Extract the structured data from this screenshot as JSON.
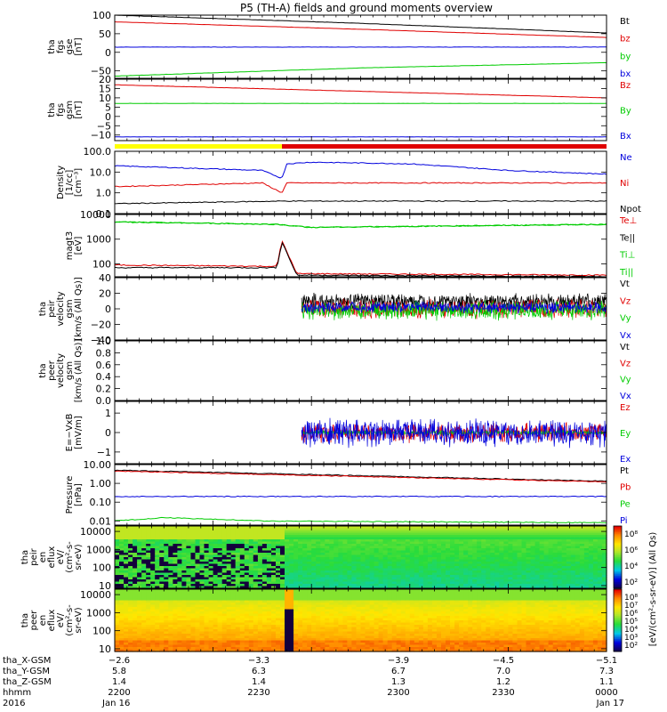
{
  "title": "P5 (TH-A) fields and ground moments overview",
  "colors": {
    "black": "#000000",
    "red": "#e00000",
    "green": "#00cc00",
    "blue": "#0000dd",
    "yellow": "#ffff00"
  },
  "chart_data": [
    {
      "type": "line",
      "panel": "fgs-gse",
      "ylabel": [
        "tha",
        "fgs",
        "gse",
        "[nT]"
      ],
      "ylim": [
        -70,
        100
      ],
      "ticks": [
        "100",
        "50",
        "0",
        "−50"
      ],
      "tick_values": [
        100,
        50,
        0,
        -50
      ],
      "series": [
        {
          "name": "Bt",
          "color": "black",
          "x": [
            0,
            0.5,
            0.85,
            1.0
          ],
          "values": [
            100,
            78,
            60,
            52
          ]
        },
        {
          "name": "bz",
          "color": "red",
          "x": [
            0,
            0.5,
            1.0
          ],
          "values": [
            82,
            62,
            40
          ]
        },
        {
          "name": "by",
          "color": "green",
          "x": [
            0,
            0.5,
            1.0
          ],
          "values": [
            -64,
            -42,
            -28
          ]
        },
        {
          "name": "bx",
          "color": "blue",
          "x": [
            0,
            1.0
          ],
          "values": [
            14,
            14
          ]
        }
      ]
    },
    {
      "type": "line",
      "panel": "fgs-gsm",
      "ylabel": [
        "tha",
        "fgs",
        "gsm",
        "[nT]"
      ],
      "ylim": [
        -13,
        20
      ],
      "ticks": [
        "20",
        "15",
        "10",
        "5",
        "0",
        "−5",
        "−10"
      ],
      "tick_values": [
        20,
        15,
        10,
        5,
        0,
        -5,
        -10
      ],
      "series": [
        {
          "name": "Bz",
          "color": "red",
          "x": [
            0,
            1.0
          ],
          "values": [
            17,
            10
          ]
        },
        {
          "name": "By",
          "color": "green",
          "x": [
            0,
            1.0
          ],
          "values": [
            7,
            7
          ]
        },
        {
          "name": "Bx",
          "color": "blue",
          "x": [
            0,
            1.0
          ],
          "values": [
            -11,
            -11
          ]
        }
      ]
    },
    {
      "type": "line",
      "panel": "density",
      "ylabel": [
        "Density",
        "[1/cc]",
        "[cm⁻³]"
      ],
      "log": true,
      "ylim": [
        0.1,
        100
      ],
      "ticks": [
        "100.0",
        "10.0",
        "1.0",
        "0.1"
      ],
      "tick_values": [
        100,
        10,
        1,
        0.1
      ],
      "series": [
        {
          "name": "Ne",
          "color": "blue",
          "x": [
            0,
            0.3,
            0.34,
            0.35,
            0.4,
            0.6,
            0.8,
            1.0
          ],
          "values": [
            20,
            12,
            5,
            25,
            30,
            25,
            12,
            8
          ]
        },
        {
          "name": "Ni",
          "color": "red",
          "x": [
            0,
            0.3,
            0.34,
            0.35,
            0.4,
            0.6,
            0.8,
            1.0
          ],
          "values": [
            2,
            3,
            1,
            3,
            3,
            3,
            3,
            3
          ]
        },
        {
          "name": "Npot",
          "color": "black",
          "x": [
            0,
            0.34,
            1.0
          ],
          "values": [
            0.3,
            0.4,
            0.4
          ]
        }
      ]
    },
    {
      "type": "line",
      "panel": "temperature",
      "ylabel": [
        "magt3",
        "[eV]"
      ],
      "log": true,
      "ylim": [
        30,
        10000
      ],
      "ticks": [
        "10000",
        "1000",
        "100"
      ],
      "tick_values": [
        10000,
        1000,
        100
      ],
      "series": [
        {
          "name": "Te⊥",
          "color": "red",
          "x": [
            0,
            0.3,
            0.33,
            0.34,
            0.37,
            0.4,
            1.0
          ],
          "values": [
            90,
            80,
            80,
            900,
            40,
            40,
            35
          ]
        },
        {
          "name": "Te||",
          "color": "black",
          "x": [
            0,
            0.33,
            0.34,
            0.37,
            1.0
          ],
          "values": [
            70,
            70,
            800,
            35,
            30
          ]
        },
        {
          "name": "Ti⊥",
          "color": "green",
          "x": [
            0,
            0.33,
            0.4,
            1.0
          ],
          "values": [
            5000,
            4000,
            3000,
            4000
          ]
        },
        {
          "name": "Ti||",
          "color": "green",
          "x": [
            0,
            0.33,
            0.4,
            1.0
          ],
          "values": [
            5000,
            4000,
            3000,
            4000
          ]
        }
      ]
    },
    {
      "type": "line",
      "panel": "peir-velocity",
      "ylabel": [
        "tha",
        "peir",
        "velocity",
        "gsm",
        "[km/s (All Qs)]"
      ],
      "ylim": [
        -40,
        40
      ],
      "ticks": [
        "40",
        "20",
        "0",
        "−20",
        "−40"
      ],
      "tick_values": [
        40,
        20,
        0,
        -20,
        -40
      ],
      "x_start": 0.38,
      "series": [
        {
          "name": "Vt",
          "color": "black",
          "mean": 10,
          "amp": 8
        },
        {
          "name": "Vz",
          "color": "red",
          "mean": 0,
          "amp": 10
        },
        {
          "name": "Vy",
          "color": "green",
          "mean": -2,
          "amp": 10
        },
        {
          "name": "Vx",
          "color": "blue",
          "mean": 2,
          "amp": 6
        }
      ]
    },
    {
      "type": "line",
      "panel": "peer-velocity",
      "ylabel": [
        "tha",
        "peer",
        "velocity",
        "gsm",
        "[km/s (All Qs)]"
      ],
      "ylim": [
        0,
        1
      ],
      "ticks": [
        "1.0",
        "0.8",
        "0.6",
        "0.4",
        "0.2",
        "0.0"
      ],
      "tick_values": [
        1,
        0.8,
        0.6,
        0.4,
        0.2,
        0
      ],
      "series": [
        {
          "name": "Vt",
          "color": "black"
        },
        {
          "name": "Vz",
          "color": "red"
        },
        {
          "name": "Vy",
          "color": "green"
        },
        {
          "name": "Vx",
          "color": "blue"
        }
      ]
    },
    {
      "type": "line",
      "panel": "efield",
      "ylabel": [
        "E=−VxB",
        "[mV/m]"
      ],
      "ylim": [
        -1.6,
        1.6
      ],
      "ticks": [
        "1",
        "0",
        "−1"
      ],
      "tick_values": [
        1,
        0,
        -1
      ],
      "x_start": 0.38,
      "series": [
        {
          "name": "Ez",
          "color": "red",
          "mean": 0,
          "amp": 0.4
        },
        {
          "name": "Ey",
          "color": "green",
          "mean": 0,
          "amp": 0.1
        },
        {
          "name": "Ex",
          "color": "blue",
          "mean": 0,
          "amp": 0.6
        }
      ]
    },
    {
      "type": "line",
      "panel": "pressure",
      "ylabel": [
        "Pressure",
        "[nPa]"
      ],
      "log": true,
      "ylim": [
        0.006,
        10
      ],
      "ticks": [
        "10.00",
        "1.00",
        "0.10",
        "0.01"
      ],
      "tick_values": [
        10,
        1,
        0.1,
        0.01
      ],
      "series": [
        {
          "name": "Pt",
          "color": "black",
          "x": [
            0,
            1.0
          ],
          "values": [
            5,
            1.3
          ]
        },
        {
          "name": "Pb",
          "color": "red",
          "x": [
            0,
            1.0
          ],
          "values": [
            4.5,
            1.2
          ]
        },
        {
          "name": "Pe",
          "color": "green",
          "x": [
            0,
            0.1,
            0.3,
            1.0
          ],
          "values": [
            0.01,
            0.015,
            0.01,
            0.008
          ]
        },
        {
          "name": "Pi",
          "color": "blue",
          "x": [
            0,
            1.0
          ],
          "values": [
            0.2,
            0.2
          ]
        }
      ]
    },
    {
      "type": "heatmap",
      "panel": "peir-spectrogram",
      "ylabel": [
        "tha",
        "peir",
        "en",
        "eflux",
        "eV/",
        "(cm²-s-",
        "sr-eV)"
      ],
      "ticks": [
        "10000",
        "1000",
        "100",
        "10"
      ],
      "tick_values": [
        10000,
        1000,
        100,
        10
      ],
      "colorbar_ticks": [
        "10⁸",
        "10⁶",
        "10⁴",
        "10²"
      ]
    },
    {
      "type": "heatmap",
      "panel": "peer-spectrogram",
      "ylabel": [
        "tha",
        "peer",
        "en",
        "eflux",
        "eV/",
        "(cm²-s-",
        "sr-eV)"
      ],
      "ticks": [
        "10000",
        "1000",
        "100",
        "10"
      ],
      "tick_values": [
        10000,
        1000,
        100,
        10
      ],
      "colorbar_ticks": [
        "10⁸",
        "10⁷",
        "10⁶",
        "10⁵",
        "10⁴",
        "10³",
        "10²"
      ]
    }
  ],
  "colorbar_label": "[eV/(cm²-s-sr-eV)] (All Qs)",
  "xaxis": {
    "rows": [
      {
        "label": "tha_X-GSM",
        "values": [
          "−2.6",
          "−3.3",
          "−3.9",
          "−4.5",
          "−5.1"
        ]
      },
      {
        "label": "tha_Y-GSM",
        "values": [
          "5.8",
          "6.3",
          "6.7",
          "7.0",
          "7.3"
        ]
      },
      {
        "label": "tha_Z-GSM",
        "values": [
          "1.4",
          "1.4",
          "1.3",
          "1.2",
          "1.1"
        ]
      },
      {
        "label": "hhmm",
        "values": [
          "2200",
          "2230",
          "2300",
          "2330",
          "0000"
        ]
      },
      {
        "label": "2016",
        "values": [
          "Jan 16",
          "",
          "",
          "",
          "Jan 17"
        ]
      }
    ]
  }
}
